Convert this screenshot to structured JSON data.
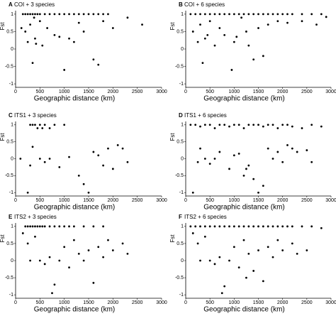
{
  "chart_data": [
    {
      "type": "scatter",
      "panel_label": "A",
      "title": "COI + 3 species",
      "xlabel": "Geographic distance (km)",
      "ylabel": "Fst",
      "color": "#000000",
      "x": [
        150,
        200,
        250,
        300,
        350,
        400,
        450,
        500,
        600,
        700,
        800,
        900,
        1000,
        1100,
        1200,
        1300,
        1400,
        1500,
        1600,
        1700,
        1800,
        1900,
        200,
        250,
        300,
        350,
        400,
        500,
        550,
        650,
        800,
        1000,
        1200,
        1400,
        1600,
        2000,
        2300,
        2600,
        1100,
        1700,
        120,
        380,
        420,
        900,
        1300,
        1800
      ],
      "y": [
        1,
        1,
        1,
        1,
        1,
        1,
        1,
        1,
        1,
        1,
        1,
        1,
        1,
        1,
        1,
        1,
        1,
        1,
        1,
        1,
        1,
        1,
        0.5,
        0.2,
        0.7,
        -0.4,
        0.3,
        0.8,
        0.1,
        0.6,
        0.4,
        -0.6,
        0.2,
        0.5,
        -0.3,
        0.6,
        0.9,
        0.7,
        0.3,
        -0.45,
        0.6,
        0.9,
        0.15,
        0.35,
        0.75,
        0.8
      ],
      "xlim": [
        0,
        3000
      ],
      "ylim": [
        -1.1,
        1.1
      ],
      "xticks": [
        0,
        500,
        1000,
        1500,
        2000,
        2500,
        3000
      ],
      "yticks": [
        -1,
        -0.5,
        0,
        0.5,
        1
      ]
    },
    {
      "type": "scatter",
      "panel_label": "B",
      "title": "COI + 6 species",
      "xlabel": "Geographic distance (km)",
      "ylabel": "Fst",
      "color": "#000000",
      "x": [
        100,
        200,
        300,
        400,
        500,
        600,
        700,
        800,
        900,
        1000,
        1100,
        1200,
        1300,
        1400,
        1500,
        1600,
        1700,
        1800,
        1900,
        2000,
        2100,
        2200,
        2400,
        2600,
        2800,
        150,
        250,
        300,
        350,
        400,
        500,
        600,
        700,
        800,
        950,
        1000,
        1150,
        1250,
        1400,
        1500,
        1700,
        1900,
        2100,
        2400,
        2700,
        450,
        1050,
        1300,
        1600,
        2900
      ],
      "y": [
        1,
        1,
        1,
        1,
        1,
        1,
        1,
        1,
        1,
        1,
        1,
        1,
        1,
        1,
        1,
        1,
        1,
        1,
        1,
        1,
        1,
        1,
        1,
        1,
        1,
        0.5,
        0.2,
        0.7,
        -0.4,
        0.3,
        0.8,
        0.1,
        0.6,
        0.4,
        -0.6,
        0.2,
        0.9,
        0.5,
        -0.3,
        0.6,
        0.7,
        0.8,
        0.75,
        0.8,
        0.7,
        0.4,
        0.35,
        0.1,
        -0.2,
        0.92
      ],
      "xlim": [
        0,
        3000
      ],
      "ylim": [
        -1.1,
        1.1
      ],
      "xticks": [
        0,
        500,
        1000,
        1500,
        2000,
        2500,
        3000
      ],
      "yticks": [
        -1,
        -0.5,
        0,
        0.5,
        1
      ]
    },
    {
      "type": "scatter",
      "panel_label": "C",
      "title": "ITS1 + 3 species",
      "xlabel": "Geographic distance (km)",
      "ylabel": "Fst",
      "color": "#000000",
      "x": [
        300,
        350,
        400,
        450,
        500,
        550,
        600,
        700,
        800,
        1000,
        100,
        250,
        300,
        350,
        500,
        600,
        700,
        900,
        1100,
        1300,
        1400,
        1500,
        1600,
        1700,
        1800,
        1900,
        2000,
        2100,
        2200,
        2300
      ],
      "y": [
        1,
        1,
        1,
        0.9,
        1,
        0.9,
        1,
        0.9,
        1,
        1,
        0,
        -1,
        -0.2,
        0.35,
        0,
        -0.1,
        0,
        -0.25,
        0.05,
        -0.5,
        -0.75,
        -1,
        0.2,
        0.1,
        -0.2,
        0.3,
        -0.3,
        0.4,
        0.3,
        -0.1
      ],
      "xlim": [
        0,
        3000
      ],
      "ylim": [
        -1.1,
        1.1
      ],
      "xticks": [
        0,
        500,
        1000,
        1500,
        2000,
        2500,
        3000
      ],
      "yticks": [
        -1,
        -0.5,
        0,
        0.5,
        1
      ]
    },
    {
      "type": "scatter",
      "panel_label": "D",
      "title": "ITS1 +  6 species",
      "xlabel": "Geographic distance (km)",
      "ylabel": "Fst",
      "color": "#000000",
      "x": [
        100,
        200,
        300,
        400,
        500,
        600,
        700,
        800,
        900,
        1000,
        1100,
        1200,
        1300,
        1400,
        1500,
        1600,
        1700,
        1800,
        1900,
        2000,
        2100,
        2200,
        2400,
        2600,
        2800,
        150,
        250,
        300,
        400,
        500,
        600,
        700,
        900,
        1000,
        1100,
        1200,
        1300,
        1400,
        1500,
        1600,
        1700,
        1800,
        1900,
        2000,
        2100,
        2200,
        2300,
        2500,
        2600,
        1250
      ],
      "y": [
        1,
        1,
        0.95,
        1,
        1,
        0.9,
        1,
        1,
        0.95,
        1,
        1,
        0.9,
        1,
        1,
        1,
        0.95,
        1,
        1,
        0.9,
        1,
        1,
        0.95,
        0.9,
        1,
        0.95,
        -1,
        -0.1,
        0.3,
        0,
        -0.15,
        0,
        0.2,
        -0.3,
        0.1,
        0.15,
        -0.5,
        -0.2,
        -0.6,
        -1,
        -0.8,
        0.3,
        0,
        0.2,
        -0.1,
        0.4,
        0.3,
        0.2,
        0.25,
        -0.1,
        -0.3
      ],
      "xlim": [
        0,
        3000
      ],
      "ylim": [
        -1.1,
        1.1
      ],
      "xticks": [
        0,
        500,
        1000,
        1500,
        2000,
        2500,
        3000
      ],
      "yticks": [
        -1,
        -0.5,
        0,
        0.5,
        1
      ]
    },
    {
      "type": "scatter",
      "panel_label": "E",
      "title": "ITS2 + 3 species",
      "xlabel": "Geographic distance (km)",
      "ylabel": "Fst",
      "color": "#000000",
      "x": [
        200,
        250,
        300,
        350,
        400,
        450,
        500,
        550,
        600,
        700,
        800,
        900,
        1000,
        1100,
        1200,
        1400,
        1600,
        1800,
        150,
        250,
        300,
        400,
        500,
        600,
        700,
        800,
        900,
        1000,
        1100,
        1200,
        1300,
        1400,
        1500,
        1600,
        1700,
        1800,
        1900,
        2000,
        2200,
        2300,
        750
      ],
      "y": [
        1,
        1,
        1,
        1,
        1,
        1,
        1,
        1,
        1,
        1,
        1,
        1,
        1,
        1,
        1,
        1,
        1,
        1,
        0.8,
        0.5,
        0,
        0.7,
        0,
        -0.1,
        0.1,
        -0.7,
        0,
        0.4,
        -0.2,
        0.6,
        0.2,
        0,
        0.3,
        -0.65,
        0.4,
        0.1,
        0.6,
        0.3,
        0.5,
        0.2,
        -0.95
      ],
      "xlim": [
        0,
        3000
      ],
      "ylim": [
        -1.1,
        1.1
      ],
      "xticks": [
        0,
        500,
        1000,
        1500,
        2000,
        2500,
        3000
      ],
      "yticks": [
        -1,
        -0.5,
        0,
        0.5,
        1
      ]
    },
    {
      "type": "scatter",
      "panel_label": "F",
      "title": "ITS2 + 6 species",
      "xlabel": "Geographic distance (km)",
      "ylabel": "Fst",
      "color": "#000000",
      "x": [
        100,
        200,
        300,
        400,
        500,
        600,
        700,
        800,
        900,
        1000,
        1100,
        1200,
        1300,
        1400,
        1500,
        1600,
        1700,
        1800,
        1900,
        2000,
        2100,
        2200,
        2400,
        2600,
        2800,
        150,
        250,
        300,
        400,
        500,
        600,
        700,
        800,
        900,
        1000,
        1100,
        1200,
        1300,
        1400,
        1500,
        1600,
        1700,
        1800,
        1900,
        2000,
        2200,
        2300,
        750,
        1250,
        2500
      ],
      "y": [
        1,
        1,
        1,
        1,
        1,
        1,
        1,
        1,
        1,
        1,
        1,
        1,
        1,
        1,
        1,
        1,
        1,
        1,
        1,
        1,
        1,
        1,
        1,
        1,
        0.95,
        0.8,
        0.5,
        0,
        0.7,
        0,
        -0.1,
        0.1,
        -0.75,
        0,
        0.4,
        -0.2,
        0.6,
        0.2,
        -0.3,
        0.3,
        -0.6,
        0.4,
        0.1,
        0.6,
        0.3,
        0.5,
        0.2,
        -0.95,
        -0.5,
        0.3
      ],
      "xlim": [
        0,
        3000
      ],
      "ylim": [
        -1.1,
        1.1
      ],
      "xticks": [
        0,
        500,
        1000,
        1500,
        2000,
        2500,
        3000
      ],
      "yticks": [
        -1,
        -0.5,
        0,
        0.5,
        1
      ]
    }
  ]
}
